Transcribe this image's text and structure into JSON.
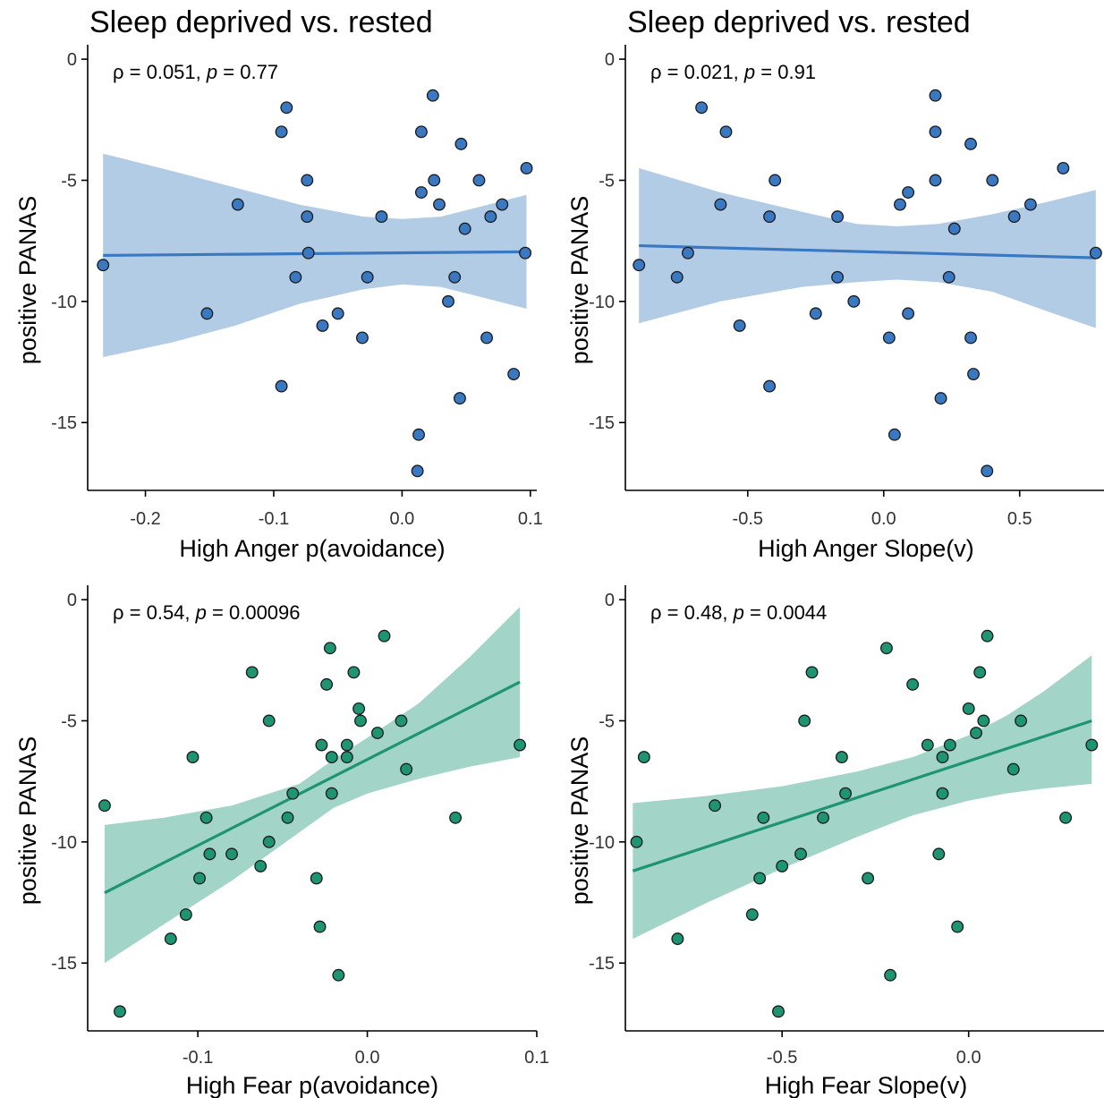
{
  "chart_data": [
    {
      "type": "scatter",
      "title": "Sleep deprived vs. rested",
      "annotation": {
        "rho": "0.051",
        "p": "0.77"
      },
      "xlabel": "High Anger p(avoidance)",
      "ylabel": "positive PANAS",
      "xlim": [
        -0.245,
        0.105
      ],
      "ylim": [
        -17.8,
        0.3
      ],
      "xticks": [
        -0.2,
        -0.1,
        0.0,
        0.1
      ],
      "xtick_labels": [
        "-0.2",
        "-0.1",
        "0.0",
        "0.1"
      ],
      "yticks": [
        0,
        -5,
        -10,
        -15
      ],
      "ytick_labels": [
        "0",
        "-5",
        "-10",
        "-15"
      ],
      "color": "#3a78c2",
      "fill": "#b3cce6",
      "fit": {
        "x": [
          -0.233,
          0.097
        ],
        "y": [
          -8.1,
          -7.95
        ]
      },
      "band": {
        "x": [
          -0.233,
          -0.18,
          -0.13,
          -0.08,
          -0.03,
          0.0,
          0.03,
          0.06,
          0.097
        ],
        "upper": [
          -3.9,
          -4.6,
          -5.3,
          -6.0,
          -6.5,
          -6.6,
          -6.5,
          -6.1,
          -5.6
        ],
        "lower": [
          -12.3,
          -11.7,
          -11.0,
          -10.1,
          -9.5,
          -9.3,
          -9.4,
          -9.8,
          -10.3
        ]
      },
      "points": [
        {
          "x": -0.233,
          "y": -8.5
        },
        {
          "x": -0.152,
          "y": -10.5
        },
        {
          "x": -0.128,
          "y": -6.0
        },
        {
          "x": -0.094,
          "y": -3.0
        },
        {
          "x": -0.09,
          "y": -2.0
        },
        {
          "x": -0.094,
          "y": -13.5
        },
        {
          "x": -0.083,
          "y": -9.0
        },
        {
          "x": -0.074,
          "y": -5.0
        },
        {
          "x": -0.074,
          "y": -6.5
        },
        {
          "x": -0.073,
          "y": -8.0
        },
        {
          "x": -0.062,
          "y": -11.0
        },
        {
          "x": -0.05,
          "y": -10.5
        },
        {
          "x": -0.031,
          "y": -11.5
        },
        {
          "x": -0.027,
          "y": -9.0
        },
        {
          "x": -0.016,
          "y": -6.5
        },
        {
          "x": 0.013,
          "y": -15.5
        },
        {
          "x": 0.012,
          "y": -17.0
        },
        {
          "x": 0.015,
          "y": -3.0
        },
        {
          "x": 0.015,
          "y": -5.5
        },
        {
          "x": 0.024,
          "y": -1.5
        },
        {
          "x": 0.025,
          "y": -5.0
        },
        {
          "x": 0.029,
          "y": -6.0
        },
        {
          "x": 0.036,
          "y": -10.0
        },
        {
          "x": 0.041,
          "y": -9.0
        },
        {
          "x": 0.045,
          "y": -14.0
        },
        {
          "x": 0.046,
          "y": -3.5
        },
        {
          "x": 0.049,
          "y": -7.0
        },
        {
          "x": 0.06,
          "y": -5.0
        },
        {
          "x": 0.066,
          "y": -11.5
        },
        {
          "x": 0.069,
          "y": -6.5
        },
        {
          "x": 0.078,
          "y": -6.0
        },
        {
          "x": 0.087,
          "y": -13.0
        },
        {
          "x": 0.096,
          "y": -8.0
        },
        {
          "x": 0.097,
          "y": -4.5
        }
      ]
    },
    {
      "type": "scatter",
      "title": "Sleep deprived vs. rested",
      "annotation": {
        "rho": "0.021",
        "p": "0.91"
      },
      "xlabel": "High Anger Slope(v)",
      "ylabel": "positive PANAS",
      "xlim": [
        -0.95,
        0.82
      ],
      "ylim": [
        -17.8,
        0.3
      ],
      "xticks": [
        -0.5,
        0.0,
        0.5
      ],
      "xtick_labels": [
        "-0.5",
        "0.0",
        "0.5"
      ],
      "yticks": [
        0,
        -5,
        -10,
        -15
      ],
      "ytick_labels": [
        "0",
        "-5",
        "-10",
        "-15"
      ],
      "color": "#3a78c2",
      "fill": "#b3cce6",
      "fit": {
        "x": [
          -0.9,
          0.78
        ],
        "y": [
          -7.7,
          -8.2
        ]
      },
      "band": {
        "x": [
          -0.9,
          -0.6,
          -0.3,
          -0.1,
          0.05,
          0.2,
          0.4,
          0.6,
          0.78
        ],
        "upper": [
          -4.5,
          -5.5,
          -6.3,
          -6.8,
          -6.9,
          -6.8,
          -6.4,
          -5.9,
          -5.4
        ],
        "lower": [
          -10.9,
          -10.0,
          -9.4,
          -9.2,
          -9.1,
          -9.2,
          -9.6,
          -10.4,
          -11.1
        ]
      },
      "points": [
        {
          "x": -0.9,
          "y": -8.5
        },
        {
          "x": -0.76,
          "y": -9.0
        },
        {
          "x": -0.72,
          "y": -8.0
        },
        {
          "x": -0.67,
          "y": -2.0
        },
        {
          "x": -0.58,
          "y": -3.0
        },
        {
          "x": -0.6,
          "y": -6.0
        },
        {
          "x": -0.53,
          "y": -11.0
        },
        {
          "x": -0.42,
          "y": -6.5
        },
        {
          "x": -0.42,
          "y": -13.5
        },
        {
          "x": -0.4,
          "y": -5.0
        },
        {
          "x": -0.25,
          "y": -10.5
        },
        {
          "x": -0.17,
          "y": -9.0
        },
        {
          "x": -0.17,
          "y": -6.5
        },
        {
          "x": -0.11,
          "y": -10.0
        },
        {
          "x": 0.02,
          "y": -11.5
        },
        {
          "x": 0.04,
          "y": -15.5
        },
        {
          "x": 0.06,
          "y": -6.0
        },
        {
          "x": 0.09,
          "y": -5.5
        },
        {
          "x": 0.09,
          "y": -10.5
        },
        {
          "x": 0.19,
          "y": -1.5
        },
        {
          "x": 0.19,
          "y": -3.0
        },
        {
          "x": 0.19,
          "y": -5.0
        },
        {
          "x": 0.21,
          "y": -14.0
        },
        {
          "x": 0.24,
          "y": -9.0
        },
        {
          "x": 0.26,
          "y": -7.0
        },
        {
          "x": 0.32,
          "y": -3.5
        },
        {
          "x": 0.32,
          "y": -11.5
        },
        {
          "x": 0.33,
          "y": -13.0
        },
        {
          "x": 0.38,
          "y": -17.0
        },
        {
          "x": 0.4,
          "y": -5.0
        },
        {
          "x": 0.48,
          "y": -6.5
        },
        {
          "x": 0.54,
          "y": -6.0
        },
        {
          "x": 0.66,
          "y": -4.5
        },
        {
          "x": 0.78,
          "y": -8.0
        }
      ]
    },
    {
      "type": "scatter",
      "title": "",
      "annotation": {
        "rho": "0.54",
        "p": "0.00096"
      },
      "xlabel": "High Fear p(avoidance)",
      "ylabel": "positive PANAS",
      "xlim": [
        -0.165,
        0.1
      ],
      "ylim": [
        -17.8,
        0.3
      ],
      "xticks": [
        -0.1,
        0.0,
        0.1
      ],
      "xtick_labels": [
        "-0.1",
        "0.0",
        "0.1"
      ],
      "yticks": [
        0,
        -5,
        -10,
        -15
      ],
      "ytick_labels": [
        "0",
        "-5",
        "-10",
        "-15"
      ],
      "color": "#1e9473",
      "fill": "#a2d5c7",
      "fit": {
        "x": [
          -0.155,
          0.09
        ],
        "y": [
          -12.1,
          -3.4
        ]
      },
      "band": {
        "x": [
          -0.155,
          -0.12,
          -0.08,
          -0.04,
          -0.02,
          0.0,
          0.03,
          0.06,
          0.09
        ],
        "upper": [
          -9.3,
          -9.0,
          -8.5,
          -7.6,
          -6.6,
          -5.7,
          -4.3,
          -2.4,
          -0.3
        ],
        "lower": [
          -15.0,
          -13.4,
          -11.6,
          -9.6,
          -8.6,
          -8.0,
          -7.4,
          -6.9,
          -6.5
        ]
      },
      "points": [
        {
          "x": -0.155,
          "y": -8.5
        },
        {
          "x": -0.146,
          "y": -17.0
        },
        {
          "x": -0.116,
          "y": -14.0
        },
        {
          "x": -0.107,
          "y": -13.0
        },
        {
          "x": -0.103,
          "y": -6.5
        },
        {
          "x": -0.099,
          "y": -11.5
        },
        {
          "x": -0.095,
          "y": -9.0
        },
        {
          "x": -0.093,
          "y": -10.5
        },
        {
          "x": -0.08,
          "y": -10.5
        },
        {
          "x": -0.068,
          "y": -3.0
        },
        {
          "x": -0.063,
          "y": -11.0
        },
        {
          "x": -0.058,
          "y": -5.0
        },
        {
          "x": -0.058,
          "y": -10.0
        },
        {
          "x": -0.047,
          "y": -9.0
        },
        {
          "x": -0.044,
          "y": -8.0
        },
        {
          "x": -0.03,
          "y": -11.5
        },
        {
          "x": -0.028,
          "y": -13.5
        },
        {
          "x": -0.027,
          "y": -6.0
        },
        {
          "x": -0.024,
          "y": -3.5
        },
        {
          "x": -0.022,
          "y": -2.0
        },
        {
          "x": -0.021,
          "y": -6.5
        },
        {
          "x": -0.021,
          "y": -8.0
        },
        {
          "x": -0.017,
          "y": -15.5
        },
        {
          "x": -0.012,
          "y": -6.0
        },
        {
          "x": -0.012,
          "y": -6.5
        },
        {
          "x": -0.008,
          "y": -3.0
        },
        {
          "x": -0.005,
          "y": -4.5
        },
        {
          "x": -0.004,
          "y": -5.0
        },
        {
          "x": 0.006,
          "y": -5.5
        },
        {
          "x": 0.01,
          "y": -1.5
        },
        {
          "x": 0.02,
          "y": -5.0
        },
        {
          "x": 0.023,
          "y": -7.0
        },
        {
          "x": 0.052,
          "y": -9.0
        },
        {
          "x": 0.09,
          "y": -6.0
        }
      ]
    },
    {
      "type": "scatter",
      "title": "",
      "annotation": {
        "rho": "0.48",
        "p": "0.0044"
      },
      "xlabel": "High Fear Slope(v)",
      "ylabel": "positive PANAS",
      "xlim": [
        -0.92,
        0.37
      ],
      "ylim": [
        -17.8,
        0.3
      ],
      "xticks": [
        -0.5,
        0.0
      ],
      "xtick_labels": [
        "-0.5",
        "0.0"
      ],
      "yticks": [
        0,
        -5,
        -10,
        -15
      ],
      "ytick_labels": [
        "0",
        "-5",
        "-10",
        "-15"
      ],
      "color": "#1e9473",
      "fill": "#a2d5c7",
      "fit": {
        "x": [
          -0.9,
          0.33
        ],
        "y": [
          -11.2,
          -5.0
        ]
      },
      "band": {
        "x": [
          -0.9,
          -0.7,
          -0.5,
          -0.3,
          -0.15,
          0.0,
          0.1,
          0.2,
          0.33
        ],
        "upper": [
          -8.4,
          -8.1,
          -7.7,
          -7.1,
          -6.5,
          -5.6,
          -4.8,
          -3.8,
          -2.3
        ],
        "lower": [
          -14.0,
          -12.5,
          -11.1,
          -9.8,
          -8.9,
          -8.3,
          -8.0,
          -7.8,
          -7.6
        ]
      },
      "points": [
        {
          "x": -0.89,
          "y": -10.0
        },
        {
          "x": -0.87,
          "y": -6.5
        },
        {
          "x": -0.78,
          "y": -14.0
        },
        {
          "x": -0.68,
          "y": -8.5
        },
        {
          "x": -0.58,
          "y": -13.0
        },
        {
          "x": -0.56,
          "y": -11.5
        },
        {
          "x": -0.55,
          "y": -9.0
        },
        {
          "x": -0.51,
          "y": -17.0
        },
        {
          "x": -0.5,
          "y": -11.0
        },
        {
          "x": -0.45,
          "y": -10.5
        },
        {
          "x": -0.44,
          "y": -5.0
        },
        {
          "x": -0.42,
          "y": -3.0
        },
        {
          "x": -0.39,
          "y": -9.0
        },
        {
          "x": -0.34,
          "y": -6.5
        },
        {
          "x": -0.33,
          "y": -8.0
        },
        {
          "x": -0.27,
          "y": -11.5
        },
        {
          "x": -0.22,
          "y": -2.0
        },
        {
          "x": -0.21,
          "y": -15.5
        },
        {
          "x": -0.15,
          "y": -3.5
        },
        {
          "x": -0.11,
          "y": -6.0
        },
        {
          "x": -0.08,
          "y": -10.5
        },
        {
          "x": -0.07,
          "y": -6.5
        },
        {
          "x": -0.07,
          "y": -8.0
        },
        {
          "x": -0.05,
          "y": -6.0
        },
        {
          "x": -0.03,
          "y": -13.5
        },
        {
          "x": 0.0,
          "y": -4.5
        },
        {
          "x": 0.02,
          "y": -5.5
        },
        {
          "x": 0.03,
          "y": -3.0
        },
        {
          "x": 0.04,
          "y": -5.0
        },
        {
          "x": 0.05,
          "y": -1.5
        },
        {
          "x": 0.12,
          "y": -7.0
        },
        {
          "x": 0.14,
          "y": -5.0
        },
        {
          "x": 0.26,
          "y": -9.0
        },
        {
          "x": 0.33,
          "y": -6.0
        }
      ]
    }
  ]
}
